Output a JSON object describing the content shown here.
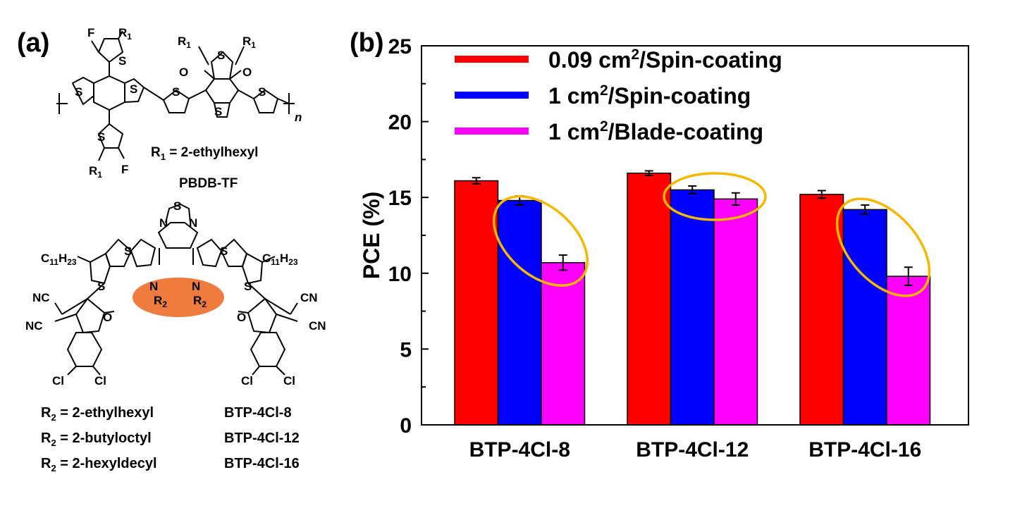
{
  "panel_a": {
    "label": "(a)",
    "polymer": {
      "atoms": {
        "S": "S",
        "F": "F",
        "O": "O",
        "R1": "R",
        "n": "n"
      },
      "r1_def_lhs": "R",
      "r1_def_rhs": " = 2-ethylhexyl",
      "name": "PBDB-TF"
    },
    "acceptor": {
      "atoms": {
        "S": "S",
        "N": "N",
        "R2": "R",
        "C11H23": "C",
        "NC": "NC",
        "CN": "CN",
        "O": "O",
        "Cl": "Cl"
      },
      "defs": [
        {
          "r2": " = 2-ethylhexyl",
          "name": "BTP-4Cl-8"
        },
        {
          "r2": " = 2-butyloctyl",
          "name": "BTP-4Cl-12"
        },
        {
          "r2": " = 2-hexyldecyl",
          "name": "BTP-4Cl-16"
        }
      ]
    },
    "highlight_color": "#f07b3f"
  },
  "panel_b": {
    "label": "(b)"
  },
  "chart_data": {
    "type": "bar",
    "ylabel": "PCE (%)",
    "ylim": [
      0,
      25
    ],
    "yticks": [
      0,
      5,
      10,
      15,
      20,
      25
    ],
    "categories": [
      "BTP-4Cl-8",
      "BTP-4Cl-12",
      "BTP-4Cl-16"
    ],
    "series": [
      {
        "name": "0.09 cm2/Spin-coating",
        "legend_main": "0.09 cm",
        "legend_sup": "2",
        "legend_tail": "/Spin-coating",
        "color": "#ff0000",
        "values": [
          16.1,
          16.6,
          15.2
        ],
        "errors": [
          0.2,
          0.15,
          0.25
        ]
      },
      {
        "name": "1 cm2/Spin-coating",
        "legend_main": "1 cm",
        "legend_sup": "2",
        "legend_tail": "/Spin-coating",
        "color": "#0000ff",
        "values": [
          14.8,
          15.5,
          14.2
        ],
        "errors": [
          0.3,
          0.25,
          0.3
        ]
      },
      {
        "name": "1 cm2/Blade-coating",
        "legend_main": "1 cm",
        "legend_sup": "2",
        "legend_tail": "/Blade-coating",
        "color": "#ff00ff",
        "values": [
          10.7,
          14.9,
          9.8
        ],
        "errors": [
          0.5,
          0.4,
          0.6
        ]
      }
    ],
    "highlight_color": "#f5b800",
    "legend_position": "top-left",
    "grid": false
  }
}
